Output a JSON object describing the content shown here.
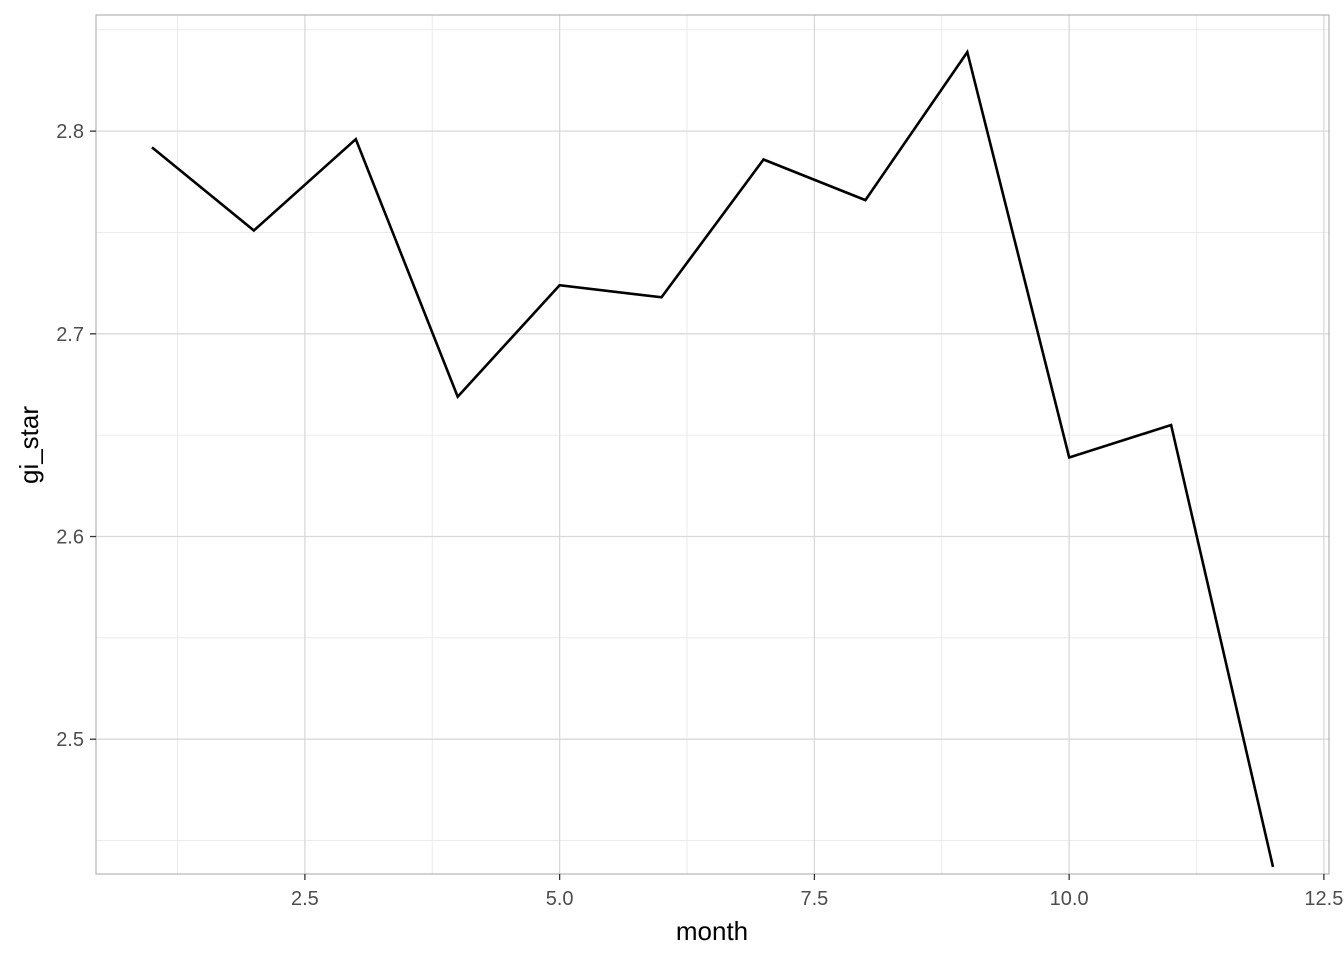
{
  "chart_data": {
    "type": "line",
    "title": "",
    "xlabel": "month",
    "ylabel": "gi_star",
    "xlim": [
      0.45,
      12.55
    ],
    "ylim": [
      2.4335,
      2.8573
    ],
    "x_ticks": [
      2.5,
      5.0,
      7.5,
      10.0,
      12.5
    ],
    "x_tick_labels": [
      "2.5",
      "5.0",
      "7.5",
      "10.0",
      "12.5"
    ],
    "x_minor_ticks": [
      1.25,
      3.75,
      6.25,
      8.75,
      11.25
    ],
    "y_ticks": [
      2.5,
      2.6,
      2.7,
      2.8
    ],
    "y_tick_labels": [
      "2.5",
      "2.6",
      "2.7",
      "2.8"
    ],
    "y_minor_ticks": [
      2.45,
      2.55,
      2.65,
      2.75,
      2.85
    ],
    "grid": true,
    "legend": "none",
    "series": [
      {
        "x": [
          1,
          2,
          3,
          4,
          5,
          6,
          7,
          8,
          9,
          10,
          11,
          12
        ],
        "values": [
          2.792,
          2.751,
          2.796,
          2.669,
          2.724,
          2.718,
          2.786,
          2.766,
          2.839,
          2.639,
          2.655,
          2.437
        ],
        "color": "#000000"
      }
    ]
  }
}
